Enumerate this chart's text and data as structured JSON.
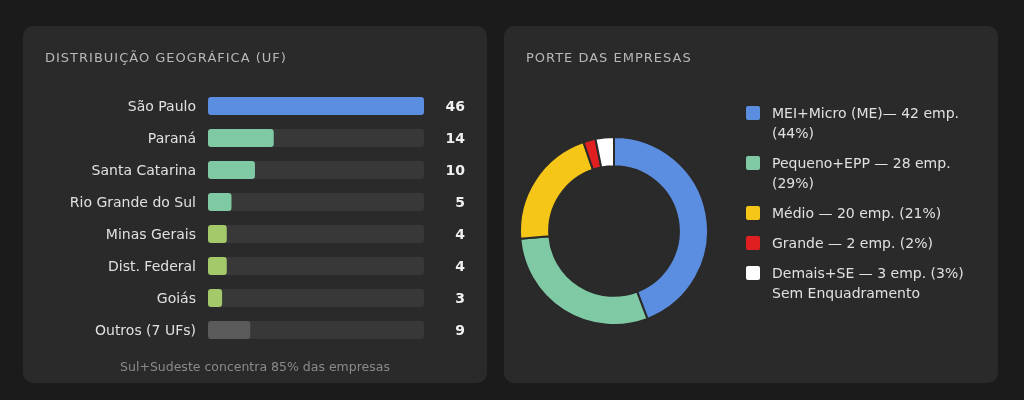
{
  "chart_data": [
    {
      "type": "bar",
      "title": "DISTRIBUIÇÃO GEOGRÁFICA (UF)",
      "orientation": "horizontal",
      "data_labels": true,
      "categories": [
        "São Paulo",
        "Paraná",
        "Santa Catarina",
        "Rio Grande do Sul",
        "Minas Gerais",
        "Dist. Federal",
        "Goiás",
        "Outros (7 UFs)"
      ],
      "values": [
        46,
        14,
        10,
        5,
        4,
        4,
        3,
        9
      ],
      "colors": [
        "#5b8ee0",
        "#7fcaa5",
        "#7fcaa5",
        "#7fcaa5",
        "#a3c96a",
        "#a3c96a",
        "#a3c96a",
        "#5a5a5a"
      ],
      "annotations": [
        "Sul+Sudeste concentra 85% das empresas"
      ]
    },
    {
      "type": "donut",
      "title": "PORTE DAS EMPRESAS",
      "legend": "right",
      "categories": [
        "MEI+Micro (ME)— 42 emp. (44%)",
        "Pequeno+EPP — 28 emp. (29%)",
        "Médio — 20 emp. (21%)",
        "Grande — 2 emp. (2%)",
        "Demais+SE — 3 emp. (3%) Sem Enquadramento"
      ],
      "values": [
        42,
        28,
        20,
        2,
        3
      ],
      "colors": [
        "#5b8ee0",
        "#7fcaa5",
        "#f5c518",
        "#e02020",
        "#ffffff"
      ]
    }
  ]
}
